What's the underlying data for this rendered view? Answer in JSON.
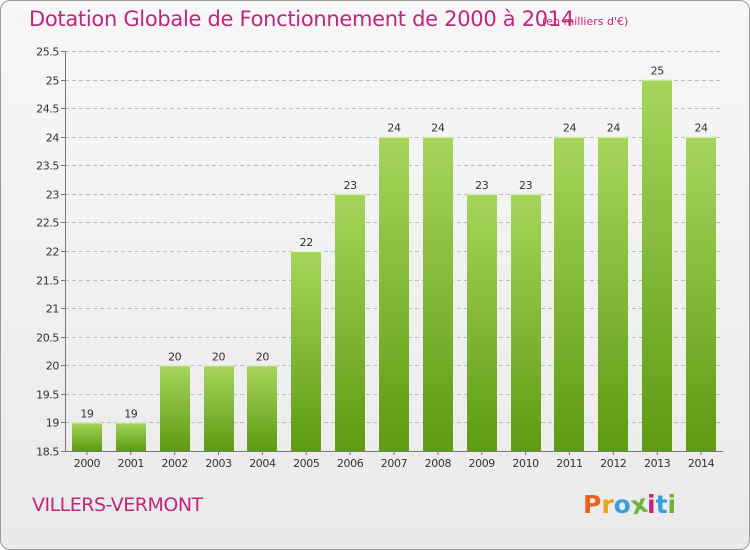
{
  "header": {
    "title": "Dotation Globale de Fonctionnement de 2000 à 2014",
    "unit_note": "(en milliers d'€)"
  },
  "footer": {
    "commune": "VILLERS-VERMONT",
    "brand_letters": [
      "P",
      "r",
      "o",
      "x",
      "i",
      "t",
      "i"
    ],
    "brand_colors": [
      "#e8641e",
      "#e8a21e",
      "#3aa0d8",
      "#6db33f",
      "#c0267a",
      "#3aa0d8",
      "#6db33f"
    ]
  },
  "colors": {
    "title": "#c0267a",
    "bar_light": "#9fd153",
    "bar_dark": "#5f9a14",
    "grid": "#b9b9b9",
    "axis": "#777777"
  },
  "chart_data": {
    "type": "bar",
    "categories": [
      "2000",
      "2001",
      "2002",
      "2003",
      "2004",
      "2005",
      "2006",
      "2007",
      "2008",
      "2009",
      "2010",
      "2011",
      "2012",
      "2013",
      "2014"
    ],
    "values": [
      19,
      19,
      20,
      20,
      20,
      22,
      23,
      24,
      24,
      23,
      23,
      24,
      24,
      25,
      24
    ],
    "value_labels": [
      "19",
      "19",
      "20",
      "20",
      "20",
      "22",
      "23",
      "24",
      "24",
      "23",
      "23",
      "24",
      "24",
      "25",
      "24"
    ],
    "ylim": [
      18.5,
      25.5
    ],
    "yticks": [
      18.5,
      19,
      19.5,
      20,
      20.5,
      21,
      21.5,
      22,
      22.5,
      23,
      23.5,
      24,
      24.5,
      25,
      25.5
    ],
    "ytick_labels": [
      "18.5",
      "19",
      "19.5",
      "20",
      "20.5",
      "21",
      "21.5",
      "22",
      "22.5",
      "23",
      "23.5",
      "24",
      "24.5",
      "25",
      "25.5"
    ],
    "grid": true,
    "title": "Dotation Globale de Fonctionnement de 2000 à 2014",
    "xlabel": "",
    "ylabel": ""
  }
}
